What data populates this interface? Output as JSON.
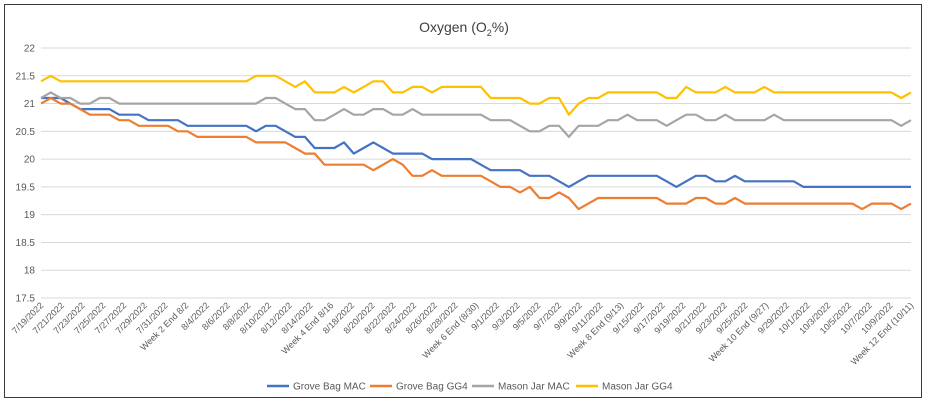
{
  "chart_data": {
    "type": "line",
    "title_main": "Oxygen (O",
    "title_sub": "2",
    "title_end": "%)",
    "xlabel": "",
    "ylabel": "",
    "ylim": [
      17.5,
      22
    ],
    "yticks": [
      "17.5",
      "18",
      "18.5",
      "19",
      "19.5",
      "20",
      "20.5",
      "21",
      "21.5",
      "22"
    ],
    "grid": true,
    "legend_position": "bottom",
    "x_tick_labels": [
      "7/19/2022",
      "7/21/2022",
      "7/23/2022",
      "7/25/2022",
      "7/27/2022",
      "7/29/2022",
      "7/31/2022",
      "Week 2 End 8/2",
      "8/4/2022",
      "8/6/2022",
      "8/8/2022",
      "8/10/2022",
      "8/12/2022",
      "8/14/2022",
      "Week 4 End 8/16",
      "8/18/2022",
      "8/20/2022",
      "8/22/2022",
      "8/24/2022",
      "8/26/2022",
      "8/28/2022",
      "Week 6 End (8/30)",
      "9/1/2022",
      "9/3/2022",
      "9/5/2022",
      "9/7/2022",
      "9/9/2022",
      "9/11/2022",
      "Week 8 End (9/13)",
      "9/15/2022",
      "9/17/2022",
      "9/19/2022",
      "9/21/2022",
      "9/23/2022",
      "9/25/2022",
      "Week 10 End (9/27)",
      "9/29/2022",
      "10/1/2022",
      "10/3/2022",
      "10/5/2022",
      "10/7/2022",
      "10/9/2022",
      "Week 12 End (10/11)"
    ],
    "series": [
      {
        "name": "Grove Bag MAC",
        "color": "#4472c4",
        "values": [
          21.1,
          21.1,
          21.1,
          21.0,
          20.9,
          20.9,
          20.9,
          20.9,
          20.8,
          20.8,
          20.8,
          20.7,
          20.7,
          20.7,
          20.7,
          20.6,
          20.6,
          20.6,
          20.6,
          20.6,
          20.6,
          20.6,
          20.5,
          20.6,
          20.6,
          20.5,
          20.4,
          20.4,
          20.2,
          20.2,
          20.2,
          20.3,
          20.1,
          20.2,
          20.3,
          20.2,
          20.1,
          20.1,
          20.1,
          20.1,
          20.0,
          20.0,
          20.0,
          20.0,
          20.0,
          19.9,
          19.8,
          19.8,
          19.8,
          19.8,
          19.7,
          19.7,
          19.7,
          19.6,
          19.5,
          19.6,
          19.7,
          19.7,
          19.7,
          19.7,
          19.7,
          19.7,
          19.7,
          19.7,
          19.6,
          19.5,
          19.6,
          19.7,
          19.7,
          19.6,
          19.6,
          19.7,
          19.6,
          19.6,
          19.6,
          19.6,
          19.6,
          19.6,
          19.5,
          19.5,
          19.5,
          19.5,
          19.5,
          19.5,
          19.5,
          19.5,
          19.5,
          19.5,
          19.5,
          19.5
        ]
      },
      {
        "name": "Grove Bag GG4",
        "color": "#ed7d31",
        "values": [
          21.0,
          21.1,
          21.0,
          21.0,
          20.9,
          20.8,
          20.8,
          20.8,
          20.7,
          20.7,
          20.6,
          20.6,
          20.6,
          20.6,
          20.5,
          20.5,
          20.4,
          20.4,
          20.4,
          20.4,
          20.4,
          20.4,
          20.3,
          20.3,
          20.3,
          20.3,
          20.2,
          20.1,
          20.1,
          19.9,
          19.9,
          19.9,
          19.9,
          19.9,
          19.8,
          19.9,
          20.0,
          19.9,
          19.7,
          19.7,
          19.8,
          19.7,
          19.7,
          19.7,
          19.7,
          19.7,
          19.6,
          19.5,
          19.5,
          19.4,
          19.5,
          19.3,
          19.3,
          19.4,
          19.3,
          19.1,
          19.2,
          19.3,
          19.3,
          19.3,
          19.3,
          19.3,
          19.3,
          19.3,
          19.2,
          19.2,
          19.2,
          19.3,
          19.3,
          19.2,
          19.2,
          19.3,
          19.2,
          19.2,
          19.2,
          19.2,
          19.2,
          19.2,
          19.2,
          19.2,
          19.2,
          19.2,
          19.2,
          19.2,
          19.1,
          19.2,
          19.2,
          19.2,
          19.1,
          19.2
        ]
      },
      {
        "name": "Mason Jar MAC",
        "color": "#a5a5a5",
        "values": [
          21.1,
          21.2,
          21.1,
          21.1,
          21.0,
          21.0,
          21.1,
          21.1,
          21.0,
          21.0,
          21.0,
          21.0,
          21.0,
          21.0,
          21.0,
          21.0,
          21.0,
          21.0,
          21.0,
          21.0,
          21.0,
          21.0,
          21.0,
          21.1,
          21.1,
          21.0,
          20.9,
          20.9,
          20.7,
          20.7,
          20.8,
          20.9,
          20.8,
          20.8,
          20.9,
          20.9,
          20.8,
          20.8,
          20.9,
          20.8,
          20.8,
          20.8,
          20.8,
          20.8,
          20.8,
          20.8,
          20.7,
          20.7,
          20.7,
          20.6,
          20.5,
          20.5,
          20.6,
          20.6,
          20.4,
          20.6,
          20.6,
          20.6,
          20.7,
          20.7,
          20.8,
          20.7,
          20.7,
          20.7,
          20.6,
          20.7,
          20.8,
          20.8,
          20.7,
          20.7,
          20.8,
          20.7,
          20.7,
          20.7,
          20.7,
          20.8,
          20.7,
          20.7,
          20.7,
          20.7,
          20.7,
          20.7,
          20.7,
          20.7,
          20.7,
          20.7,
          20.7,
          20.7,
          20.6,
          20.7
        ]
      },
      {
        "name": "Mason Jar GG4",
        "color": "#ffc000",
        "values": [
          21.4,
          21.5,
          21.4,
          21.4,
          21.4,
          21.4,
          21.4,
          21.4,
          21.4,
          21.4,
          21.4,
          21.4,
          21.4,
          21.4,
          21.4,
          21.4,
          21.4,
          21.4,
          21.4,
          21.4,
          21.4,
          21.4,
          21.5,
          21.5,
          21.5,
          21.4,
          21.3,
          21.4,
          21.2,
          21.2,
          21.2,
          21.3,
          21.2,
          21.3,
          21.4,
          21.4,
          21.2,
          21.2,
          21.3,
          21.3,
          21.2,
          21.3,
          21.3,
          21.3,
          21.3,
          21.3,
          21.1,
          21.1,
          21.1,
          21.1,
          21.0,
          21.0,
          21.1,
          21.1,
          20.8,
          21.0,
          21.1,
          21.1,
          21.2,
          21.2,
          21.2,
          21.2,
          21.2,
          21.2,
          21.1,
          21.1,
          21.3,
          21.2,
          21.2,
          21.2,
          21.3,
          21.2,
          21.2,
          21.2,
          21.3,
          21.2,
          21.2,
          21.2,
          21.2,
          21.2,
          21.2,
          21.2,
          21.2,
          21.2,
          21.2,
          21.2,
          21.2,
          21.2,
          21.1,
          21.2
        ]
      }
    ]
  }
}
